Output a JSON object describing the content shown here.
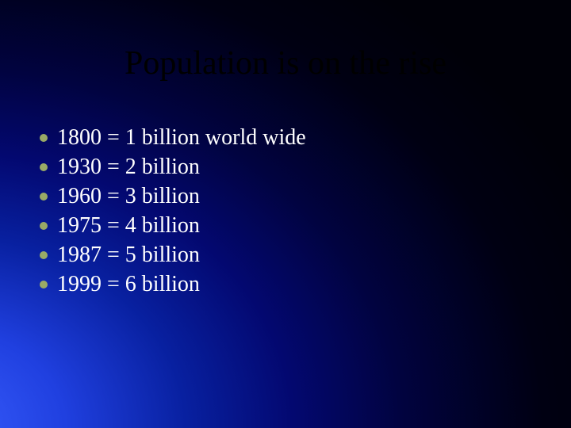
{
  "slide": {
    "title": "Population is on the rise",
    "title_color": "#000000",
    "title_fontsize": 42,
    "background": {
      "type": "radial-gradient",
      "center": "bottom-left",
      "colors": [
        "#3a5fff",
        "#2040e0",
        "#0820a0",
        "#030870",
        "#010340",
        "#000012",
        "#000008"
      ]
    },
    "bullets": [
      {
        "text": "1800 = 1 billion world wide"
      },
      {
        "text": "1930 = 2 billion"
      },
      {
        "text": "1960 = 3 billion"
      },
      {
        "text": "1975 = 4 billion"
      },
      {
        "text": "1987 = 5 billion"
      },
      {
        "text": "1999 = 6 billion"
      }
    ],
    "bullet_style": {
      "dot_color": "#99aa66",
      "dot_size": 10,
      "text_color": "#ffffff",
      "fontsize": 28
    }
  }
}
